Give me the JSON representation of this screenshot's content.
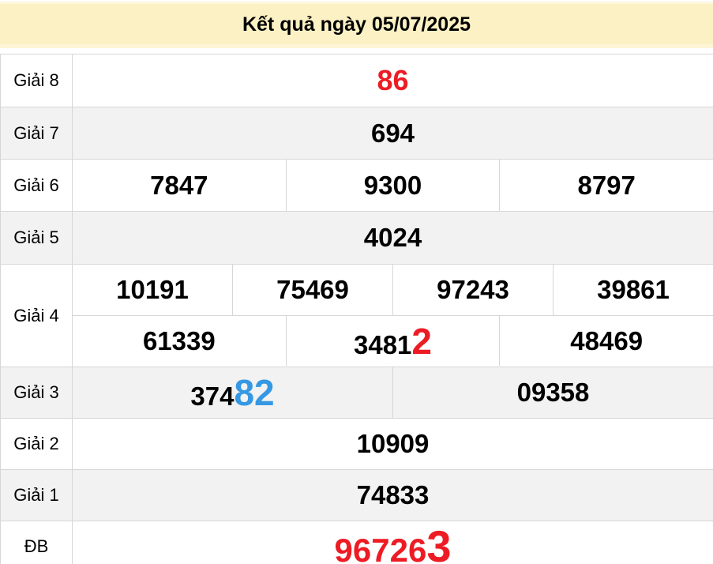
{
  "title": "Kết quả ngày 05/07/2025",
  "colors": {
    "header_bg": "#fcf1c4",
    "alt_row_bg": "#f1f2f1",
    "border": "#d6d6d6",
    "red": "#ed1c24",
    "blue": "#3598e4",
    "text": "#000000"
  },
  "rows": [
    {
      "label": "Giải 8",
      "shaded": false,
      "lines": [
        [
          [
            {
              "t": "86",
              "c": "red",
              "s": "md"
            }
          ]
        ]
      ]
    },
    {
      "label": "Giải 7",
      "shaded": true,
      "lines": [
        [
          [
            {
              "t": "694"
            }
          ]
        ]
      ]
    },
    {
      "label": "Giải 6",
      "shaded": false,
      "lines": [
        [
          [
            {
              "t": "7847"
            }
          ],
          [
            {
              "t": "9300"
            }
          ],
          [
            {
              "t": "8797"
            }
          ]
        ]
      ]
    },
    {
      "label": "Giải 5",
      "shaded": true,
      "lines": [
        [
          [
            {
              "t": "4024"
            }
          ]
        ]
      ]
    },
    {
      "label": "Giải 4",
      "shaded": false,
      "lines": [
        [
          [
            {
              "t": "10191"
            }
          ],
          [
            {
              "t": "75469"
            }
          ],
          [
            {
              "t": "97243"
            }
          ],
          [
            {
              "t": "39861"
            }
          ]
        ],
        [
          [
            {
              "t": "61339"
            }
          ],
          [
            {
              "t": "3481"
            },
            {
              "t": "2",
              "c": "red",
              "s": "lg"
            }
          ],
          [
            {
              "t": "48469"
            }
          ]
        ]
      ]
    },
    {
      "label": "Giải 3",
      "shaded": true,
      "lines": [
        [
          [
            {
              "t": "374"
            },
            {
              "t": "82",
              "c": "blue",
              "s": "lg"
            }
          ],
          [
            {
              "t": "09358"
            }
          ]
        ]
      ]
    },
    {
      "label": "Giải 2",
      "shaded": false,
      "lines": [
        [
          [
            {
              "t": "10909"
            }
          ]
        ]
      ]
    },
    {
      "label": "Giải 1",
      "shaded": true,
      "lines": [
        [
          [
            {
              "t": "74833"
            }
          ]
        ]
      ]
    },
    {
      "label": "ĐB",
      "shaded": false,
      "lines": [
        [
          [
            {
              "t": "96726",
              "c": "red",
              "s": "xl"
            },
            {
              "t": "3",
              "c": "red",
              "s": "xxl"
            }
          ]
        ]
      ]
    }
  ]
}
